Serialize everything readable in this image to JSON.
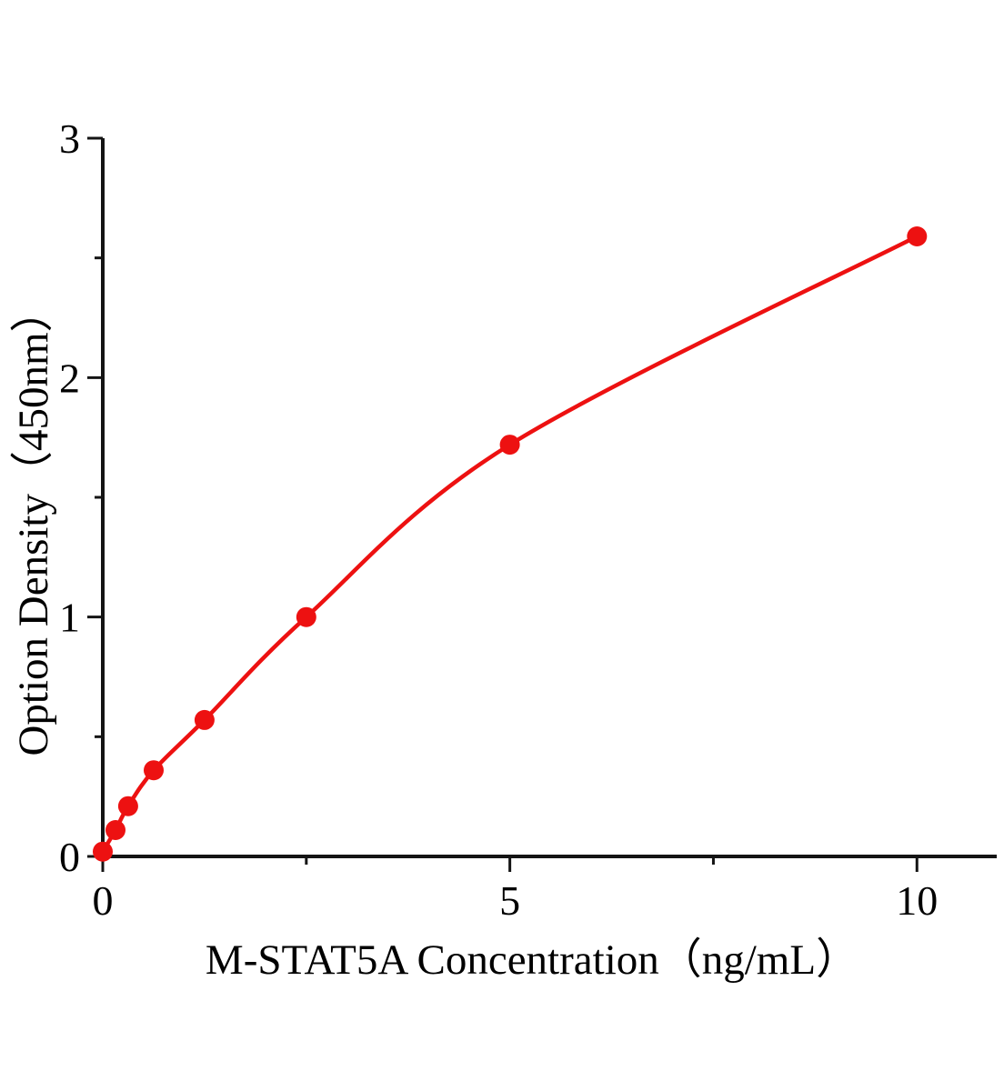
{
  "figure": {
    "background_color": "#ffffff"
  },
  "chart_data": {
    "type": "scatter",
    "title": "",
    "xlabel": "M-STAT5A Concentration（ng/mL）",
    "ylabel": "Option Density（450nm）",
    "x": [
      0,
      0.156,
      0.312,
      0.625,
      1.25,
      2.5,
      5,
      10
    ],
    "y": [
      0.02,
      0.11,
      0.21,
      0.36,
      0.57,
      1.0,
      1.72,
      2.59
    ],
    "curve": "smooth-fit-through-points",
    "marker": "filled-circle",
    "xlim": [
      0,
      10.98
    ],
    "ylim": [
      0,
      3
    ],
    "x_major_ticks": [
      0,
      5,
      10
    ],
    "x_major_tick_labels": [
      "0",
      "5",
      "10"
    ],
    "x_minor_ticks": [
      2.5,
      7.5
    ],
    "y_major_ticks": [
      0,
      1,
      2,
      3
    ],
    "y_major_tick_labels": [
      "0",
      "1",
      "2",
      "3"
    ],
    "y_minor_ticks": [
      0.5,
      1.5,
      2.5
    ],
    "grid": false,
    "legend_position": "none",
    "colors": {
      "series": "#ed1111",
      "axis": "#141414",
      "text": "#000000"
    }
  }
}
